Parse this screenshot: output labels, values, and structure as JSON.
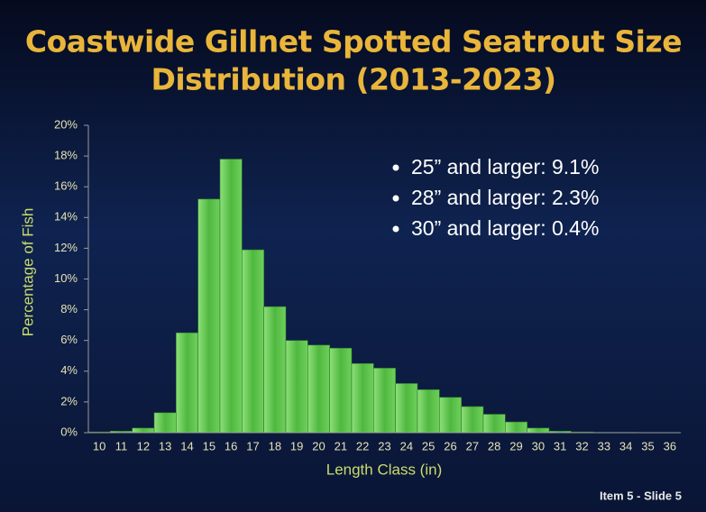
{
  "chart_data": {
    "type": "bar",
    "title": [
      "Coastwide Gillnet Spotted Seatrout Size",
      "Distribution (2013-2023)"
    ],
    "x_label": "Length Class (in)",
    "y_label": "Percentage of Fish",
    "categories": [
      10,
      11,
      12,
      13,
      14,
      15,
      16,
      17,
      18,
      19,
      20,
      21,
      22,
      23,
      24,
      25,
      26,
      27,
      28,
      29,
      30,
      31,
      32,
      33,
      34,
      35,
      36
    ],
    "values": [
      0.05,
      0.1,
      0.3,
      1.3,
      6.5,
      15.2,
      17.8,
      11.9,
      8.2,
      6.0,
      5.7,
      5.5,
      4.5,
      4.2,
      3.2,
      2.8,
      2.3,
      1.7,
      1.2,
      0.7,
      0.3,
      0.1,
      0.05,
      0.02,
      0.02,
      0.01,
      0.01
    ],
    "color": "#5cc24c",
    "ylim": [
      0,
      20
    ],
    "yticks": [
      {
        "value": 0,
        "label": "0%"
      },
      {
        "value": 2,
        "label": "2%"
      },
      {
        "value": 4,
        "label": "4%"
      },
      {
        "value": 6,
        "label": "6%"
      },
      {
        "value": 8,
        "label": "8%"
      },
      {
        "value": 10,
        "label": "10%"
      },
      {
        "value": 12,
        "label": "12%"
      },
      {
        "value": 14,
        "label": "14%"
      },
      {
        "value": 16,
        "label": "16%"
      },
      {
        "value": 18,
        "label": "18%"
      },
      {
        "value": 20,
        "label": "20%"
      }
    ],
    "grid": false,
    "annotations": [
      "25” and larger: 9.1%",
      "28” and larger: 2.3%",
      "30” and larger: 0.4%"
    ],
    "footer": "Item 5 - Slide 5"
  }
}
